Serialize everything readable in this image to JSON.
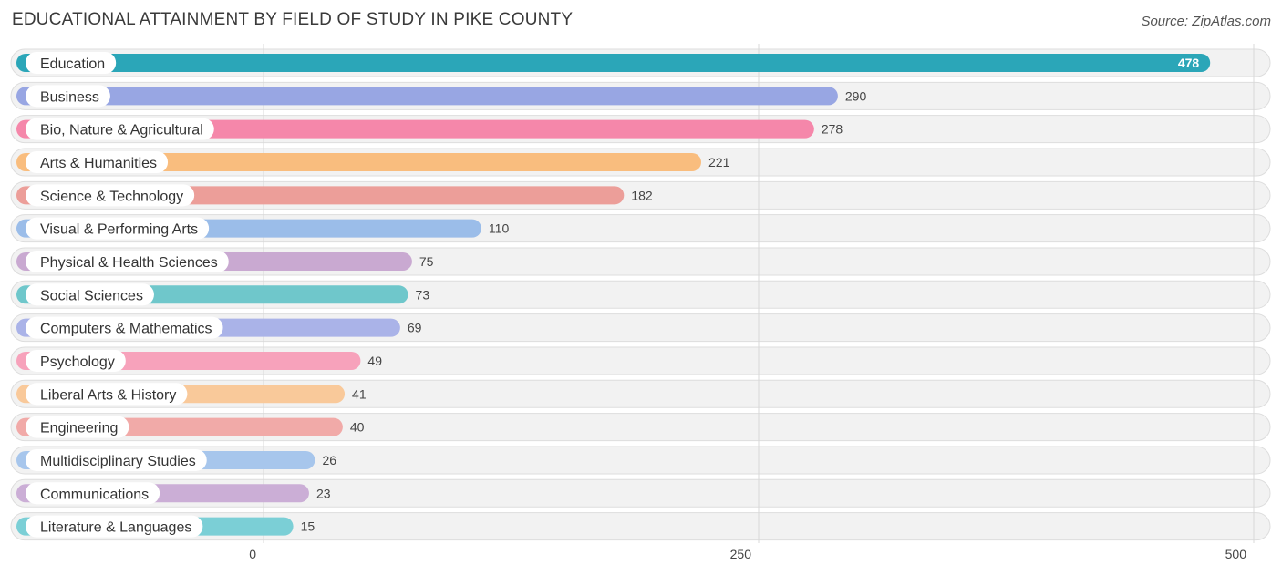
{
  "chart_data": {
    "type": "bar",
    "orientation": "horizontal",
    "title": "EDUCATIONAL ATTAINMENT BY FIELD OF STUDY IN PIKE COUNTY",
    "source": "Source: ZipAtlas.com",
    "categories": [
      "Education",
      "Business",
      "Bio, Nature & Agricultural",
      "Arts & Humanities",
      "Science & Technology",
      "Visual & Performing Arts",
      "Physical & Health Sciences",
      "Social Sciences",
      "Computers & Mathematics",
      "Psychology",
      "Liberal Arts & History",
      "Engineering",
      "Multidisciplinary Studies",
      "Communications",
      "Literature & Languages"
    ],
    "values": [
      478,
      290,
      278,
      221,
      182,
      110,
      75,
      73,
      69,
      49,
      41,
      40,
      26,
      23,
      15
    ],
    "colors": [
      "#2ba6b8",
      "#98a6e3",
      "#f587aa",
      "#f9bd7e",
      "#ec9e99",
      "#9bbde9",
      "#c9a9d1",
      "#6fc7cb",
      "#aab3e8",
      "#f7a2bb",
      "#f9c99a",
      "#f1aaa8",
      "#a7c6ec",
      "#cbaed6",
      "#7bcfd6"
    ],
    "xlim": [
      0,
      500
    ],
    "xticks": [
      0,
      250,
      500
    ],
    "xtick_labels": [
      "0",
      "250",
      "500"
    ],
    "grid": true,
    "legend": "none"
  }
}
